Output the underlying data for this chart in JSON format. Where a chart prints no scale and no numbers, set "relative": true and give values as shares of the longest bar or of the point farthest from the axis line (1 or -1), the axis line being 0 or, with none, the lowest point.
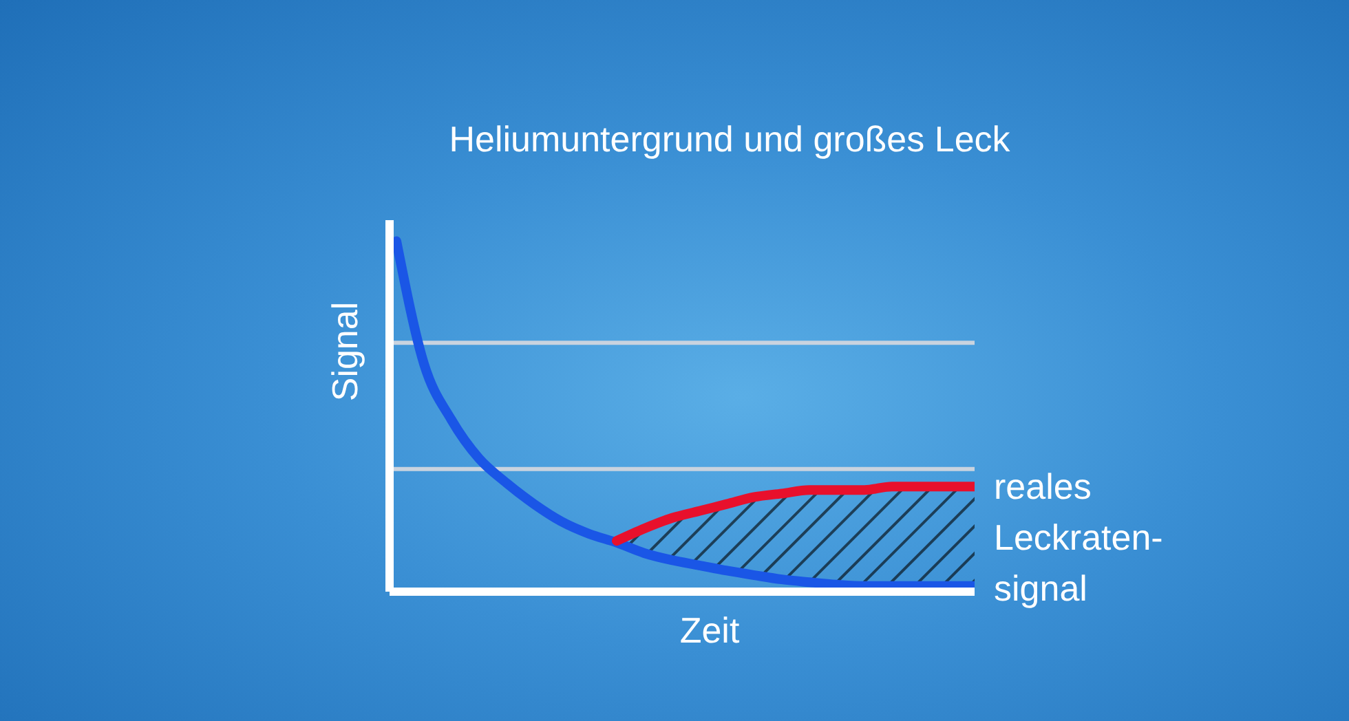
{
  "chart_data": {
    "type": "line",
    "title": "Heliumuntergrund und großes Leck",
    "xlabel": "Zeit",
    "ylabel": "Signal",
    "relative": true,
    "legend": false,
    "marker": "none",
    "categories": [
      null,
      null,
      null,
      null,
      null,
      null,
      null,
      null,
      null,
      null,
      null,
      null,
      null,
      null,
      null,
      null,
      null,
      null,
      null,
      null,
      null,
      null
    ],
    "series": [
      {
        "color": "#1a56e6",
        "values": [
          1.0,
          0.65,
          0.49,
          0.38,
          0.31,
          0.25,
          0.2,
          0.165,
          0.14,
          0.11,
          0.09,
          0.075,
          0.06,
          0.047,
          0.035,
          0.027,
          0.02,
          0.016,
          0.016,
          0.016,
          0.016,
          0.016
        ]
      },
      {
        "name": "reales Leckraten-signal",
        "color": "#e8102c",
        "values": [
          null,
          null,
          null,
          null,
          null,
          null,
          null,
          null,
          0.145,
          0.18,
          0.21,
          0.23,
          0.25,
          0.27,
          0.28,
          0.29,
          0.29,
          0.29,
          0.3,
          0.3,
          0.3,
          0.3
        ],
        "lower": [
          null,
          null,
          null,
          null,
          null,
          null,
          null,
          null,
          0.14,
          0.11,
          0.09,
          0.075,
          0.06,
          0.047,
          0.035,
          0.027,
          0.02,
          0.016,
          0.016,
          0.016,
          0.016,
          0.016
        ],
        "upper": [
          null,
          null,
          null,
          null,
          null,
          null,
          null,
          null,
          0.145,
          0.18,
          0.21,
          0.23,
          0.25,
          0.27,
          0.28,
          0.29,
          0.29,
          0.29,
          0.3,
          0.3,
          0.3,
          0.3
        ]
      }
    ],
    "ref_lines": [
      {
        "axis": "y",
        "value": 0.71,
        "color": "#c9d3df"
      },
      {
        "axis": "y",
        "value": 0.35,
        "color": "#c9d3df"
      }
    ]
  }
}
